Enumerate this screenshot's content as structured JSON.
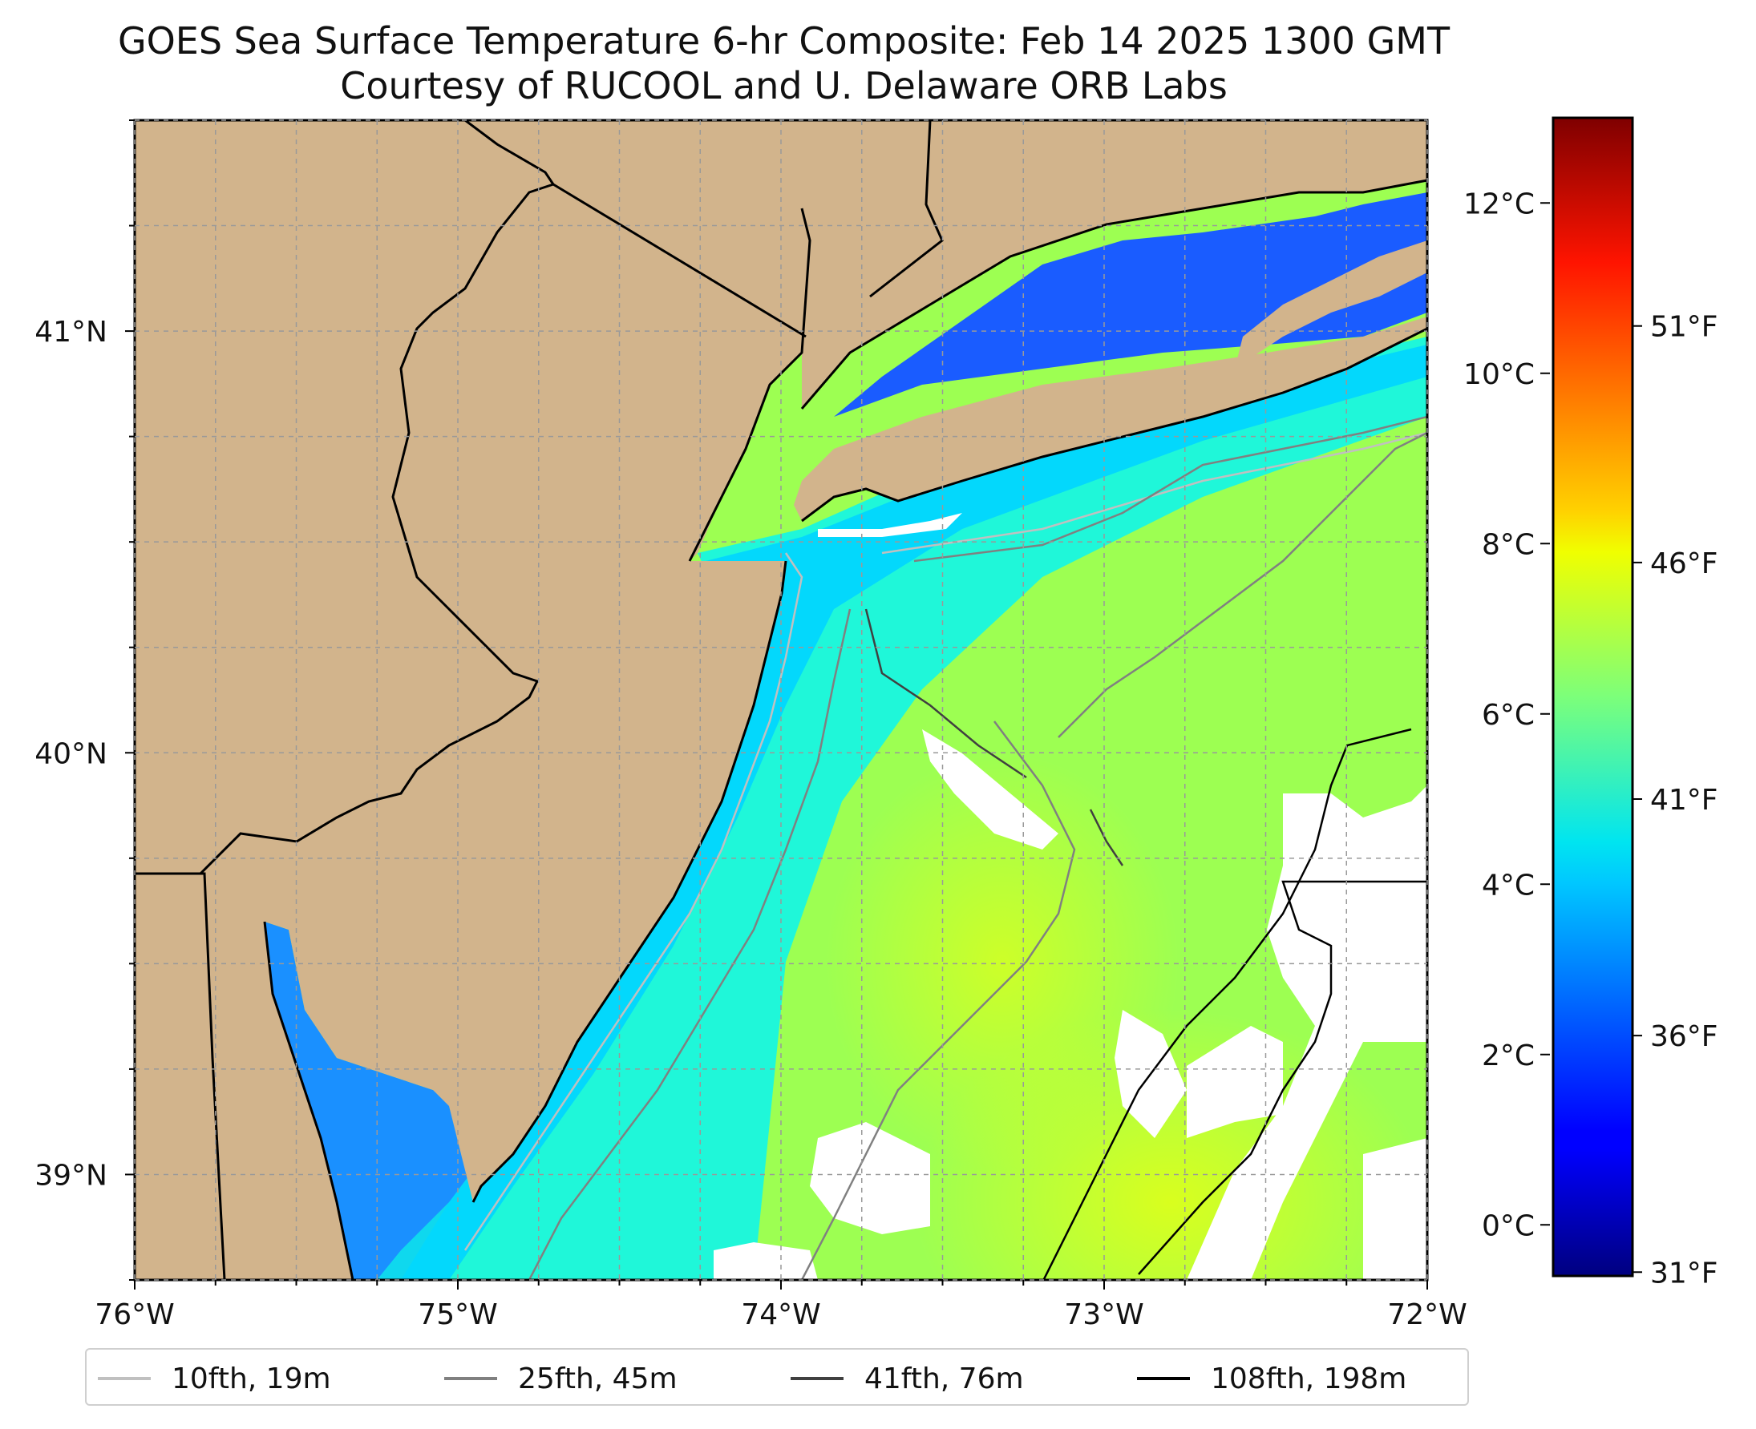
{
  "title": {
    "line1": "GOES Sea Surface Temperature 6-hr Composite: Feb 14 2025 1300 GMT",
    "line2": "Courtesy of RUCOOL and U. Delaware ORB Labs"
  },
  "map": {
    "lon_labels": [
      "76°W",
      "75°W",
      "74°W",
      "73°W",
      "72°W"
    ],
    "lat_labels": [
      "41°N",
      "40°N",
      "39°N"
    ],
    "lon_range": [
      -76,
      -72
    ],
    "lat_range": [
      38.75,
      41.5
    ],
    "land_color": "#d2b48c",
    "missing_color": "#ffffff"
  },
  "colorbar": {
    "celsius_labels": [
      "12°C",
      "10°C",
      "8°C",
      "6°C",
      "4°C",
      "2°C",
      "0°C"
    ],
    "fahrenheit_labels": [
      "51°F",
      "46°F",
      "41°F",
      "36°F",
      "31°F"
    ],
    "colormap": "jet",
    "range_celsius": [
      -0.6,
      13.0
    ]
  },
  "legend": {
    "items": [
      {
        "label": "10fth, 19m",
        "color": "#c0c0c0"
      },
      {
        "label": "25fth, 45m",
        "color": "#808080"
      },
      {
        "label": "41fth, 76m",
        "color": "#404040"
      },
      {
        "label": "108fth, 198m",
        "color": "#000000"
      }
    ]
  }
}
